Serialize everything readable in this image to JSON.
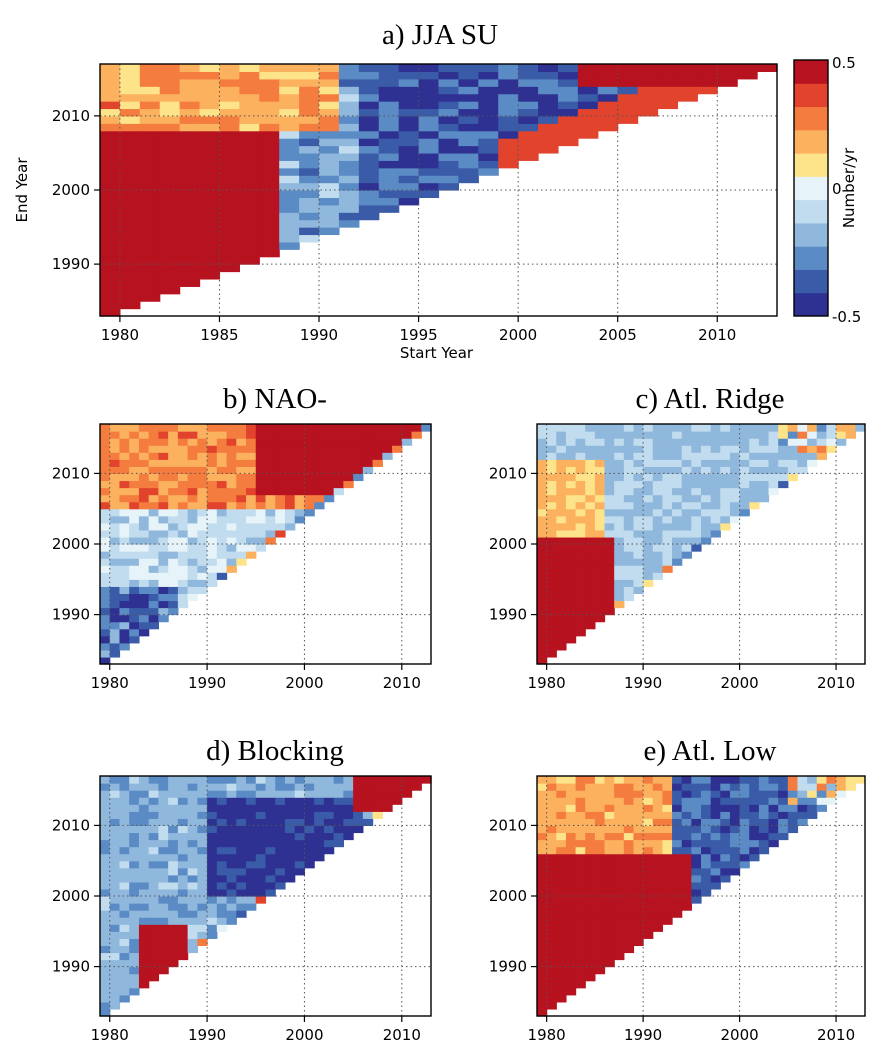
{
  "colorbar": {
    "label": "Number/yr",
    "max_label": "0.5",
    "zero_label": "0",
    "min_label": "-0.5",
    "range": [
      -0.5,
      0.5
    ],
    "colors": [
      "#2e3192",
      "#3a5ba8",
      "#5b8bc5",
      "#8fb8dc",
      "#c0dcee",
      "#e6f3f8",
      "#fde38a",
      "#fbb15e",
      "#f47c3e",
      "#e2432d",
      "#b7121f"
    ]
  },
  "chart_data": [
    {
      "type": "heatmap",
      "title": "a) JJA SU",
      "xlabel": "Start Year",
      "ylabel": "End Year",
      "xlim": [
        1979,
        2013
      ],
      "ylim": [
        1983,
        2017
      ],
      "xticks": [
        "1980",
        "1985",
        "1990",
        "1995",
        "2000",
        "2005",
        "2010"
      ],
      "yticks": [
        "1990",
        "2000",
        "2010"
      ],
      "dominant_pattern": [
        {
          "region": "start 1979-1987, end 1983-2007",
          "value": 0.5
        },
        {
          "region": "start 1988-2003, end 1995-2013",
          "value": -0.4
        },
        {
          "region": "start 1979-1990, end 2008-2017",
          "value": 0.2
        },
        {
          "region": "start 2003-2012, end 2014-2017",
          "value": 0.45
        }
      ]
    },
    {
      "type": "heatmap",
      "title": "b) NAO-",
      "xlim": [
        1979,
        2013
      ],
      "ylim": [
        1983,
        2017
      ],
      "xticks": [
        "1980",
        "1990",
        "2000",
        "2010"
      ],
      "yticks": [
        "1990",
        "2000",
        "2010"
      ],
      "dominant_pattern": [
        {
          "region": "start 1979-1995, end 2005-2017",
          "value": 0.25
        },
        {
          "region": "start 1995-2005, end 2008-2017",
          "value": 0.5
        },
        {
          "region": "start 1979-1990, end 1995-2005",
          "value": -0.1
        },
        {
          "region": "start 1980-1985, end 1985-1992",
          "value": -0.4
        }
      ]
    },
    {
      "type": "heatmap",
      "title": "c) Atl. Ridge",
      "xlim": [
        1979,
        2013
      ],
      "ylim": [
        1983,
        2017
      ],
      "xticks": [
        "1980",
        "1990",
        "2000",
        "2010"
      ],
      "yticks": [
        "1990",
        "2000",
        "2010"
      ],
      "dominant_pattern": [
        {
          "region": "start 1979-1986, end 1983-2000",
          "value": 0.5
        },
        {
          "region": "start 1979-1985, end 2000-2010",
          "value": 0.15
        },
        {
          "region": "start 1986-2008, end 1995-2017",
          "value": -0.15
        }
      ]
    },
    {
      "type": "heatmap",
      "title": "d) Blocking",
      "xlim": [
        1979,
        2013
      ],
      "ylim": [
        1983,
        2017
      ],
      "xticks": [
        "1980",
        "1990",
        "2000",
        "2010"
      ],
      "yticks": [
        "1990",
        "2000",
        "2010"
      ],
      "dominant_pattern": [
        {
          "region": "start 1979-1990, end 1995-2017",
          "value": -0.2
        },
        {
          "region": "start 1990-2005, end 2000-2013",
          "value": -0.45
        },
        {
          "region": "start 1983-1987, end 1990-1995",
          "value": 0.5
        },
        {
          "region": "start 2005-2012, end 2012-2017",
          "value": 0.45
        }
      ]
    },
    {
      "type": "heatmap",
      "title": "e) Atl. Low",
      "xlim": [
        1979,
        2013
      ],
      "ylim": [
        1983,
        2017
      ],
      "xticks": [
        "1980",
        "1990",
        "2000",
        "2010"
      ],
      "yticks": [
        "1990",
        "2000",
        "2010"
      ],
      "dominant_pattern": [
        {
          "region": "start 1979-1994, end 1985-2005",
          "value": 0.5
        },
        {
          "region": "start 1979-1995, end 2005-2017",
          "value": 0.2
        },
        {
          "region": "start 1994-2008, end 2003-2017",
          "value": -0.35
        }
      ]
    }
  ]
}
